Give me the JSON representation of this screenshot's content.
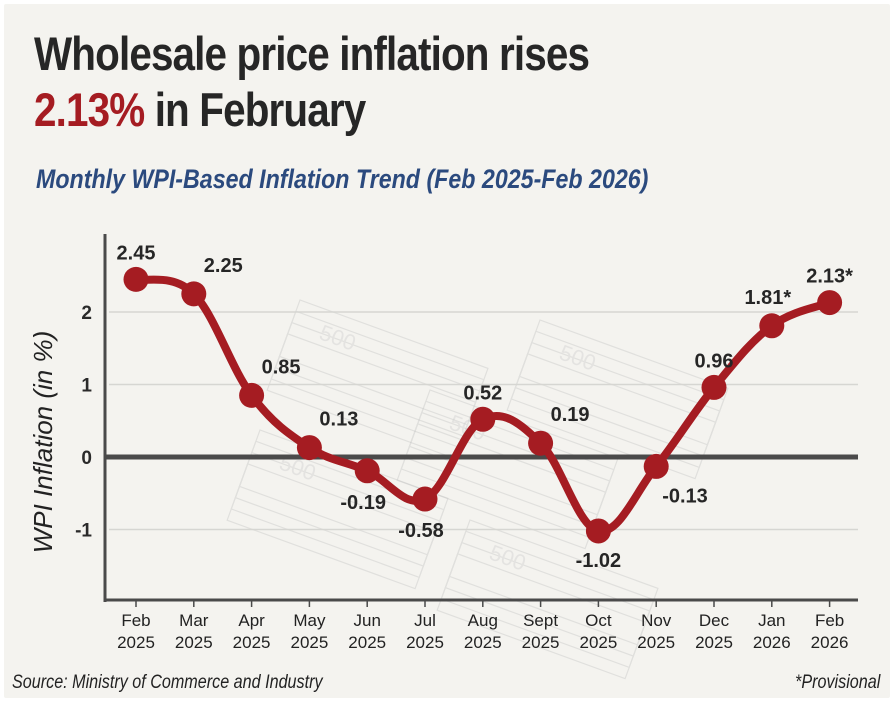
{
  "header": {
    "title_line1": "Wholesale price inflation rises",
    "title_highlight": "2.13%",
    "title_line2_rest": " in February",
    "subtitle": "Monthly WPI-Based Inflation Trend (Feb 2025-Feb 2026)"
  },
  "footer": {
    "source": "Source: Ministry of Commerce and Industry",
    "note": "*Provisional"
  },
  "colors": {
    "line": "#a51c22",
    "highlight": "#a51c22",
    "subtitle": "#2b4a7e",
    "axis": "#4a4a4a",
    "grid": "#d6d6d2",
    "background": "#f4f3ef"
  },
  "chart_data": {
    "type": "line",
    "title": "Monthly WPI-Based Inflation Trend (Feb 2025-Feb 2026)",
    "xlabel": "",
    "ylabel": "WPI Inflation (in %)",
    "ylim": [
      -1.95,
      2.95
    ],
    "yticks": [
      2,
      1,
      0,
      -1
    ],
    "grid": true,
    "categories": [
      [
        "Feb",
        "2025"
      ],
      [
        "Mar",
        "2025"
      ],
      [
        "Apr",
        "2025"
      ],
      [
        "May",
        "2025"
      ],
      [
        "Jun",
        "2025"
      ],
      [
        "Jul",
        "2025"
      ],
      [
        "Aug",
        "2025"
      ],
      [
        "Sept",
        "2025"
      ],
      [
        "Oct",
        "2025"
      ],
      [
        "Nov",
        "2025"
      ],
      [
        "Dec",
        "2025"
      ],
      [
        "Jan",
        "2026"
      ],
      [
        "Feb",
        "2026"
      ]
    ],
    "series": [
      {
        "name": "WPI Inflation",
        "values": [
          2.45,
          2.25,
          0.85,
          0.13,
          -0.19,
          -0.58,
          0.52,
          0.19,
          -1.02,
          -0.13,
          0.96,
          1.81,
          2.13
        ],
        "labels": [
          "2.45",
          "2.25",
          "0.85",
          "0.13",
          "-0.19",
          "-0.58",
          "0.52",
          "0.19",
          "-1.02",
          "-0.13",
          "0.96",
          "1.81*",
          "2.13*"
        ],
        "label_pos": [
          "above",
          "above-right",
          "above-right",
          "above-right",
          "below-left",
          "below-left",
          "above",
          "above-right",
          "below",
          "below-right",
          "above",
          "above-left",
          "above"
        ]
      }
    ],
    "annotations": [
      "* Provisional"
    ]
  }
}
